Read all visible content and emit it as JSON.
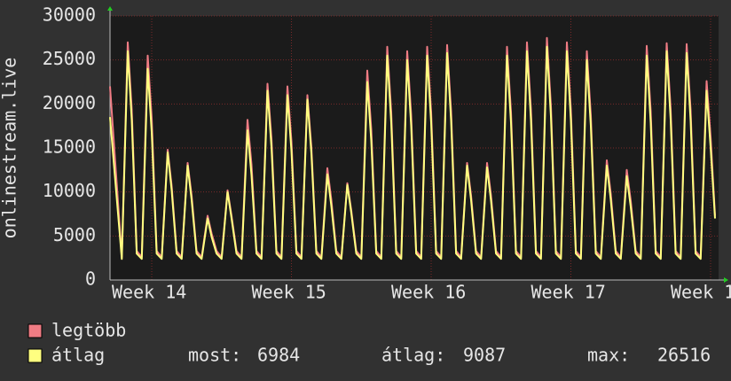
{
  "chart_data": {
    "type": "line",
    "ylabel": "onlinestream.live",
    "x": [
      0,
      0.59,
      0.89,
      1.09,
      1.34,
      1.59,
      1.89,
      2.09,
      2.34,
      2.59,
      2.89,
      3.09,
      3.34,
      3.59,
      3.89,
      4.09,
      4.34,
      4.59,
      4.89,
      5.09,
      5.34,
      5.59,
      5.89,
      6.09,
      6.34,
      6.59,
      6.89,
      7.09,
      7.34,
      7.59,
      7.89,
      8.09,
      8.34,
      8.59,
      8.89,
      9.09,
      9.34,
      9.59,
      9.89,
      10.09,
      10.34,
      10.59,
      10.89,
      11.09,
      11.34,
      11.59,
      11.89,
      12.09,
      12.34,
      12.59,
      12.89,
      13.09,
      13.34,
      13.59,
      13.89,
      14.09,
      14.34,
      14.59,
      14.89,
      15.09,
      15.34,
      15.59,
      15.89,
      16.09,
      16.34,
      16.59,
      16.89,
      17.09,
      17.34,
      17.59,
      17.89,
      18.09,
      18.34,
      18.59,
      18.89,
      19.09,
      19.34,
      19.59,
      19.89,
      20.09,
      20.34,
      20.59,
      20.89,
      21.09,
      21.34,
      21.59,
      21.89,
      22.09,
      22.34,
      22.59,
      22.89,
      23.09,
      23.34,
      23.59,
      23.89,
      24.09,
      24.34,
      24.59,
      24.89,
      25.09,
      25.34,
      25.59,
      25.89,
      26.09,
      26.34,
      26.59,
      26.89,
      27.09,
      27.34,
      27.59,
      27.89,
      28.09,
      28.34,
      28.59,
      28.89,
      29.09,
      29.34,
      29.59,
      29.89,
      30.09,
      30.31
    ],
    "series": [
      {
        "name": "legtöbb",
        "color": "#f07c84",
        "values": [
          22000,
          2600,
          27000,
          19400,
          3300,
          2600,
          25500,
          18400,
          3300,
          2600,
          14800,
          10700,
          3300,
          2600,
          13300,
          9600,
          3300,
          2600,
          7300,
          5300,
          3300,
          2600,
          10200,
          7300,
          3300,
          2600,
          18200,
          13100,
          3300,
          2600,
          22300,
          16100,
          3300,
          2600,
          22000,
          15800,
          3300,
          2600,
          21000,
          15100,
          3300,
          2600,
          12700,
          9100,
          3300,
          2600,
          11000,
          7900,
          3300,
          2600,
          23800,
          17100,
          3300,
          2600,
          26500,
          19100,
          3300,
          2600,
          26000,
          18700,
          3300,
          2600,
          26500,
          19100,
          3300,
          2600,
          26700,
          19200,
          3300,
          2600,
          13300,
          9600,
          3300,
          2600,
          13300,
          9600,
          3300,
          2600,
          26500,
          19100,
          3300,
          2600,
          27000,
          19400,
          3300,
          2600,
          27500,
          19800,
          3300,
          2600,
          27000,
          19400,
          3300,
          2600,
          26000,
          18700,
          3300,
          2600,
          13600,
          9800,
          3300,
          2600,
          12500,
          9000,
          3300,
          2600,
          26600,
          19200,
          3300,
          2600,
          26900,
          19400,
          3300,
          2600,
          26800,
          19300,
          3300,
          2600,
          22600,
          16300,
          7300
        ]
      },
      {
        "name": "átlag",
        "color": "#ffff80",
        "values": [
          18500,
          2400,
          26000,
          18200,
          3000,
          2400,
          24000,
          16800,
          3000,
          2400,
          14500,
          10200,
          3000,
          2400,
          13000,
          9100,
          3000,
          2400,
          7000,
          4900,
          3000,
          2400,
          10000,
          7000,
          3000,
          2400,
          17000,
          11900,
          3000,
          2400,
          21500,
          15100,
          3000,
          2400,
          21000,
          14700,
          3000,
          2400,
          20500,
          14400,
          3000,
          2400,
          12000,
          8400,
          3000,
          2400,
          10800,
          7600,
          3000,
          2400,
          22500,
          15800,
          3000,
          2400,
          25500,
          17900,
          3000,
          2400,
          25000,
          17500,
          3000,
          2400,
          25500,
          17900,
          3000,
          2400,
          25800,
          18100,
          3000,
          2400,
          13000,
          9100,
          3000,
          2400,
          12800,
          9000,
          3000,
          2400,
          25500,
          17900,
          3000,
          2400,
          26000,
          18200,
          3000,
          2400,
          26500,
          18600,
          3000,
          2400,
          26000,
          18200,
          3000,
          2400,
          25000,
          17500,
          3000,
          2400,
          13000,
          9100,
          3000,
          2400,
          11800,
          8300,
          3000,
          2400,
          25500,
          17900,
          3000,
          2400,
          26000,
          18200,
          3000,
          2400,
          25800,
          18100,
          3000,
          2400,
          21500,
          15100,
          6984
        ]
      }
    ],
    "xlim": [
      0,
      30.49
    ],
    "xticks": [
      {
        "value": 2.09,
        "label": "Week 14"
      },
      {
        "value": 9.09,
        "label": "Week 15"
      },
      {
        "value": 16.09,
        "label": "Week 16"
      },
      {
        "value": 23.09,
        "label": "Week 17"
      },
      {
        "value": 30.09,
        "label": "Week 1"
      }
    ],
    "ylim": [
      0,
      30000
    ],
    "yticks": [
      0,
      5000,
      10000,
      15000,
      20000,
      25000,
      30000
    ],
    "grid": true,
    "stats": [
      {
        "label": "most:",
        "value": 6984
      },
      {
        "label": "átlag:",
        "value": 9087
      },
      {
        "label": "max:",
        "value": 26516
      }
    ]
  }
}
